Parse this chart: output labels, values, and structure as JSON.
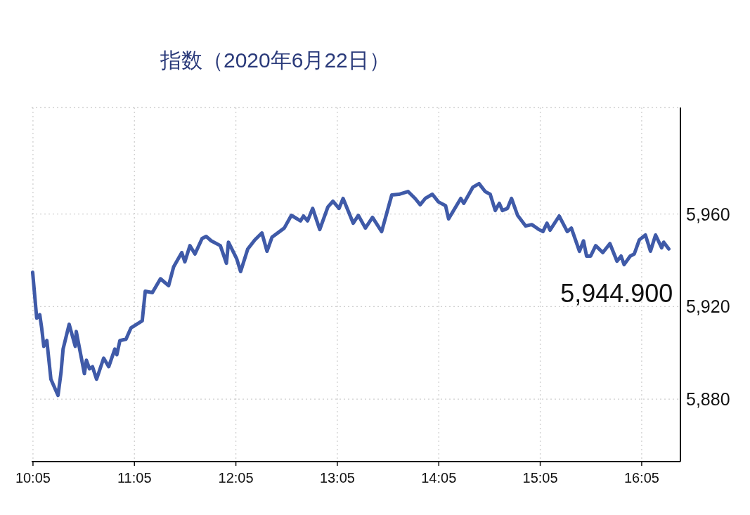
{
  "chart_data": {
    "type": "line",
    "title": "指数（2020年6月22日）",
    "x": [
      10.08,
      10.12,
      10.15,
      10.17,
      10.19,
      10.22,
      10.26,
      10.33,
      10.36,
      10.38,
      10.44,
      10.5,
      10.51,
      10.59,
      10.61,
      10.64,
      10.67,
      10.71,
      10.78,
      10.83,
      10.89,
      10.91,
      10.94,
      11.0,
      11.05,
      11.16,
      11.19,
      11.26,
      11.34,
      11.42,
      11.47,
      11.55,
      11.58,
      11.63,
      11.68,
      11.75,
      11.79,
      11.84,
      11.93,
      11.99,
      12.01,
      12.09,
      12.13,
      12.2,
      12.27,
      12.34,
      12.39,
      12.44,
      12.56,
      12.63,
      12.72,
      12.75,
      12.79,
      12.84,
      12.91,
      12.99,
      13.04,
      13.1,
      13.14,
      13.24,
      13.29,
      13.36,
      13.43,
      13.52,
      13.62,
      13.69,
      13.78,
      13.85,
      13.9,
      13.95,
      14.02,
      14.08,
      14.15,
      14.18,
      14.3,
      14.33,
      14.42,
      14.48,
      14.54,
      14.59,
      14.64,
      14.68,
      14.71,
      14.76,
      14.8,
      14.86,
      14.94,
      15.0,
      15.07,
      15.11,
      15.15,
      15.18,
      15.27,
      15.35,
      15.39,
      15.47,
      15.51,
      15.54,
      15.58,
      15.63,
      15.7,
      15.77,
      15.84,
      15.88,
      15.91,
      15.97,
      16.01,
      16.06,
      16.12,
      16.17,
      16.22,
      16.28,
      16.3,
      16.35
    ],
    "series": [
      {
        "color": "#3f5aa8",
        "values": [
          5934.8,
          5915.0,
          5916.5,
          5910.4,
          5902.8,
          5905.3,
          5888.6,
          5881.6,
          5891.6,
          5901.6,
          5912.3,
          5902.8,
          5909.2,
          5891.0,
          5896.8,
          5893.1,
          5894.0,
          5888.6,
          5897.7,
          5894.0,
          5901.6,
          5899.2,
          5905.3,
          5905.9,
          5910.8,
          5913.8,
          5926.6,
          5926.0,
          5932.0,
          5929.0,
          5937.2,
          5943.3,
          5939.3,
          5946.3,
          5942.7,
          5949.4,
          5950.3,
          5948.4,
          5946.3,
          5938.7,
          5947.8,
          5940.8,
          5935.1,
          5944.8,
          5948.8,
          5951.8,
          5943.9,
          5950.0,
          5953.9,
          5959.4,
          5957.0,
          5959.1,
          5957.0,
          5962.4,
          5953.3,
          5963.0,
          5965.5,
          5962.4,
          5966.7,
          5956.0,
          5959.4,
          5953.9,
          5958.5,
          5952.4,
          5968.2,
          5968.5,
          5969.7,
          5966.7,
          5964.0,
          5966.7,
          5968.5,
          5965.2,
          5963.6,
          5957.9,
          5966.7,
          5964.6,
          5971.6,
          5973.1,
          5969.7,
          5968.5,
          5961.5,
          5964.6,
          5961.5,
          5962.4,
          5966.7,
          5959.4,
          5954.8,
          5955.4,
          5953.3,
          5952.4,
          5956.0,
          5953.0,
          5959.1,
          5952.4,
          5953.9,
          5943.9,
          5948.4,
          5941.8,
          5941.8,
          5946.3,
          5943.3,
          5947.2,
          5939.6,
          5941.8,
          5938.1,
          5941.8,
          5942.7,
          5948.8,
          5950.9,
          5943.9,
          5950.9,
          5945.4,
          5947.8,
          5944.9
        ]
      }
    ],
    "xlim": [
      10.07,
      16.465
    ],
    "ylim": [
      5853,
      6006
    ],
    "xticks": [
      {
        "value": 10.0833,
        "label": "10:05"
      },
      {
        "value": 11.0833,
        "label": "11:05"
      },
      {
        "value": 12.0833,
        "label": "12:05"
      },
      {
        "value": 13.0833,
        "label": "13:05"
      },
      {
        "value": 14.0833,
        "label": "14:05"
      },
      {
        "value": 15.0833,
        "label": "15:05"
      },
      {
        "value": 16.0833,
        "label": "16:05"
      }
    ],
    "yticks": [
      {
        "value": 5880,
        "label": "5,880"
      },
      {
        "value": 5920,
        "label": "5,920"
      },
      {
        "value": 5960,
        "label": "5,960"
      }
    ],
    "grid": true,
    "annotations": [
      {
        "text": "5,944.900",
        "x": 16.35,
        "y": 5944.9
      }
    ]
  }
}
